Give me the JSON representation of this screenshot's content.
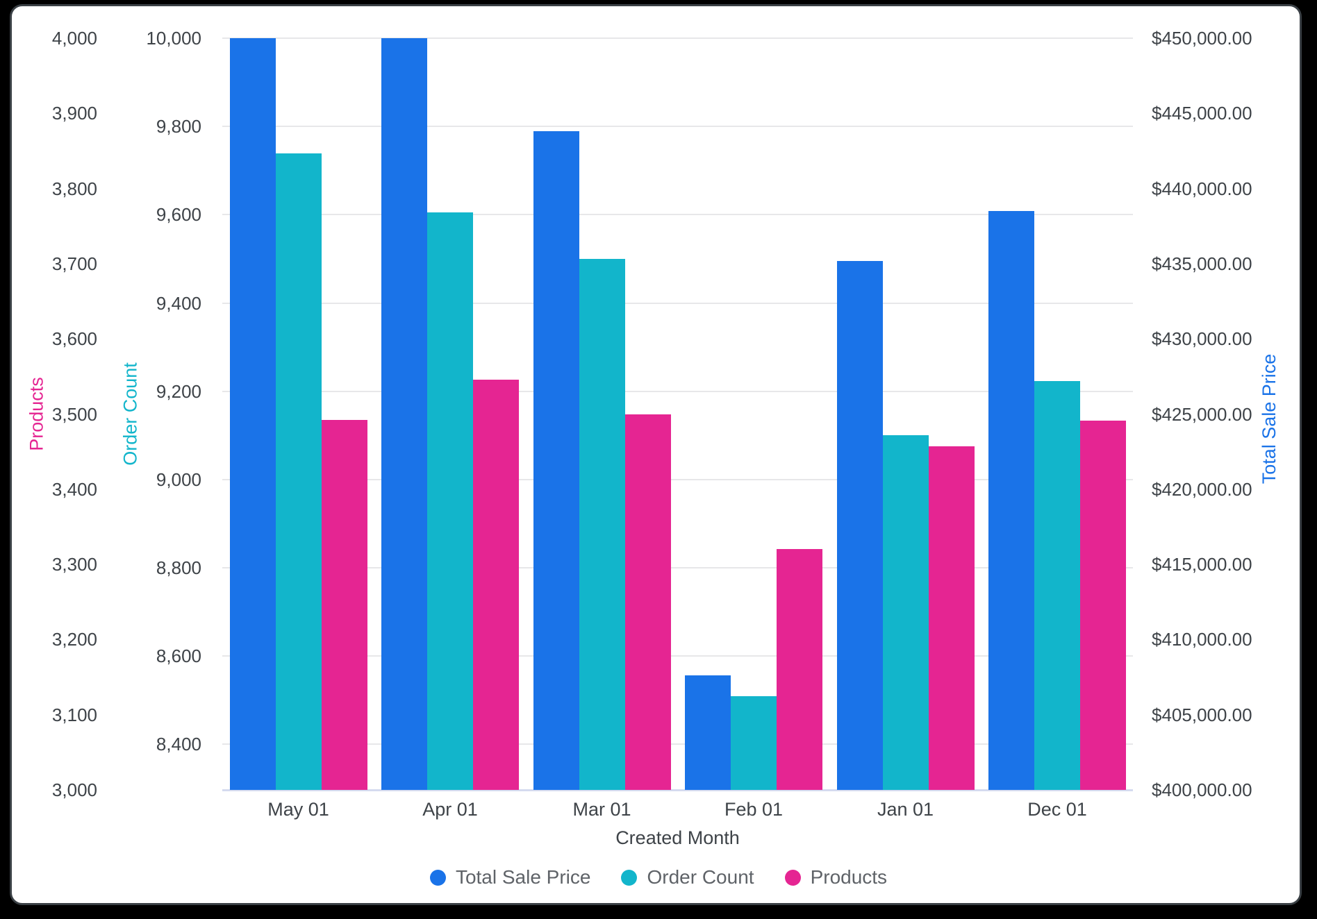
{
  "chart_data": {
    "type": "bar",
    "title": "",
    "categories": [
      "May 01",
      "Apr 01",
      "Mar 01",
      "Feb 01",
      "Jan 01",
      "Dec 01"
    ],
    "xlabel": "Created Month",
    "legend_position": "bottom",
    "grid": true,
    "series": [
      {
        "name": "Total Sale Price",
        "axis": "price",
        "color": "#1A73E8",
        "values": [
          450000,
          450000,
          443800,
          407600,
          435200,
          438500
        ]
      },
      {
        "name": "Order Count",
        "axis": "orders",
        "color": "#12B5CB",
        "values": [
          9739,
          9605,
          9500,
          8510,
          9100,
          9223
        ]
      },
      {
        "name": "Products",
        "axis": "products",
        "color": "#E52592",
        "values": [
          3492,
          3546,
          3500,
          3320,
          3457,
          3491
        ]
      }
    ],
    "axes": {
      "products": {
        "title": "Products",
        "side": "left-outer",
        "color": "#E52592",
        "min": 3000,
        "max": 4000,
        "ticks": [
          {
            "v": 3000,
            "label": "3,000"
          },
          {
            "v": 3100,
            "label": "3,100"
          },
          {
            "v": 3200,
            "label": "3,200"
          },
          {
            "v": 3300,
            "label": "3,300"
          },
          {
            "v": 3400,
            "label": "3,400"
          },
          {
            "v": 3500,
            "label": "3,500"
          },
          {
            "v": 3600,
            "label": "3,600"
          },
          {
            "v": 3700,
            "label": "3,700"
          },
          {
            "v": 3800,
            "label": "3,800"
          },
          {
            "v": 3900,
            "label": "3,900"
          },
          {
            "v": 4000,
            "label": "4,000"
          }
        ]
      },
      "orders": {
        "title": "Order Count",
        "side": "left-inner",
        "color": "#12B5CB",
        "min": 8297,
        "max": 10000,
        "gridlines": true,
        "ticks": [
          {
            "v": 8400,
            "label": "8,400"
          },
          {
            "v": 8600,
            "label": "8,600"
          },
          {
            "v": 8800,
            "label": "8,800"
          },
          {
            "v": 9000,
            "label": "9,000"
          },
          {
            "v": 9200,
            "label": "9,200"
          },
          {
            "v": 9400,
            "label": "9,400"
          },
          {
            "v": 9600,
            "label": "9,600"
          },
          {
            "v": 9800,
            "label": "9,800"
          },
          {
            "v": 10000,
            "label": "10,000"
          }
        ]
      },
      "price": {
        "title": "Total Sale Price",
        "side": "right",
        "color": "#1A73E8",
        "min": 400000,
        "max": 450000,
        "ticks": [
          {
            "v": 400000,
            "label": "$400,000.00"
          },
          {
            "v": 405000,
            "label": "$405,000.00"
          },
          {
            "v": 410000,
            "label": "$410,000.00"
          },
          {
            "v": 415000,
            "label": "$415,000.00"
          },
          {
            "v": 420000,
            "label": "$420,000.00"
          },
          {
            "v": 425000,
            "label": "$425,000.00"
          },
          {
            "v": 430000,
            "label": "$430,000.00"
          },
          {
            "v": 435000,
            "label": "$435,000.00"
          },
          {
            "v": 440000,
            "label": "$440,000.00"
          },
          {
            "v": 445000,
            "label": "$445,000.00"
          },
          {
            "v": 450000,
            "label": "$450,000.00"
          }
        ]
      },
      "x": {
        "title": "Created Month"
      }
    },
    "legend": [
      {
        "label": "Total Sale Price",
        "color": "#1A73E8"
      },
      {
        "label": "Order Count",
        "color": "#12B5CB"
      },
      {
        "label": "Products",
        "color": "#E52592"
      }
    ]
  }
}
